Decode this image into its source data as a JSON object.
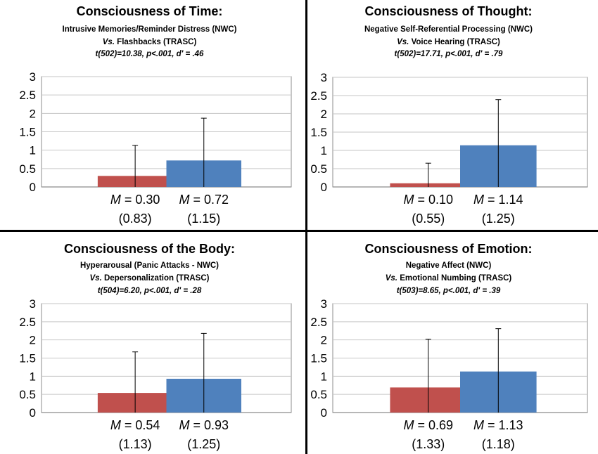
{
  "colors": {
    "nwc": "#c0504d",
    "trasc": "#4f81bd",
    "grid": "#c6c6c6",
    "error_bar": "#000000",
    "axis": "#8c8c8c"
  },
  "y_ticks": [
    "0",
    "0.5",
    "1",
    "1.5",
    "2",
    "2.5",
    "3"
  ],
  "panels": [
    {
      "title": "Consciousness of Time:",
      "subtitle_line1": "Intrusive Memories/Reminder Distress (NWC)",
      "subtitle_vs": "Vs.",
      "subtitle_line2": "Flashbacks (TRASC)",
      "stat": "t(502)=10.38, p<.001, d' = .46",
      "bars": [
        {
          "m_text": "= 0.30",
          "sd_text": "(0.83)"
        },
        {
          "m_text": "= 0.72",
          "sd_text": "(1.15)"
        }
      ]
    },
    {
      "title": "Consciousness of Thought:",
      "subtitle_line1": "Negative Self-Referential Processing (NWC)",
      "subtitle_vs": "Vs.",
      "subtitle_line2": "Voice Hearing (TRASC)",
      "stat": "t(502)=17.71, p<.001, d' = .79",
      "bars": [
        {
          "m_text": "= 0.10",
          "sd_text": "(0.55)"
        },
        {
          "m_text": "= 1.14",
          "sd_text": "(1.25)"
        }
      ]
    },
    {
      "title": "Consciousness of the Body:",
      "subtitle_line1": "Hyperarousal (Panic Attacks - NWC)",
      "subtitle_vs": "Vs.",
      "subtitle_line2": "Depersonalization (TRASC)",
      "stat": "t(504)=6.20, p<.001, d' = .28",
      "bars": [
        {
          "m_text": "= 0.54",
          "sd_text": "(1.13)"
        },
        {
          "m_text": "= 0.93",
          "sd_text": "(1.25)"
        }
      ]
    },
    {
      "title": "Consciousness of Emotion:",
      "subtitle_line1": "Negative Affect (NWC)",
      "subtitle_vs": "Vs.",
      "subtitle_line2": "Emotional Numbing (TRASC)",
      "stat": "t(503)=8.65, p<.001, d' = .39",
      "bars": [
        {
          "m_text": "= 0.69",
          "sd_text": "(1.33)"
        },
        {
          "m_text": "= 1.13",
          "sd_text": "(1.18)"
        }
      ]
    }
  ],
  "chart_data": [
    {
      "type": "bar",
      "title": "Consciousness of Time:",
      "categories": [
        "NWC",
        "TRASC"
      ],
      "values": [
        0.3,
        0.72
      ],
      "sd": [
        0.83,
        1.15
      ],
      "ylim": [
        0,
        3
      ],
      "grid": true
    },
    {
      "type": "bar",
      "title": "Consciousness of Thought:",
      "categories": [
        "NWC",
        "TRASC"
      ],
      "values": [
        0.1,
        1.14
      ],
      "sd": [
        0.55,
        1.25
      ],
      "ylim": [
        0,
        3
      ],
      "grid": true
    },
    {
      "type": "bar",
      "title": "Consciousness of the Body:",
      "categories": [
        "NWC",
        "TRASC"
      ],
      "values": [
        0.54,
        0.93
      ],
      "sd": [
        1.13,
        1.25
      ],
      "ylim": [
        0,
        3
      ],
      "grid": true
    },
    {
      "type": "bar",
      "title": "Consciousness of Emotion:",
      "categories": [
        "NWC",
        "TRASC"
      ],
      "values": [
        0.69,
        1.13
      ],
      "sd": [
        1.33,
        1.18
      ],
      "ylim": [
        0,
        3
      ],
      "grid": true
    }
  ]
}
